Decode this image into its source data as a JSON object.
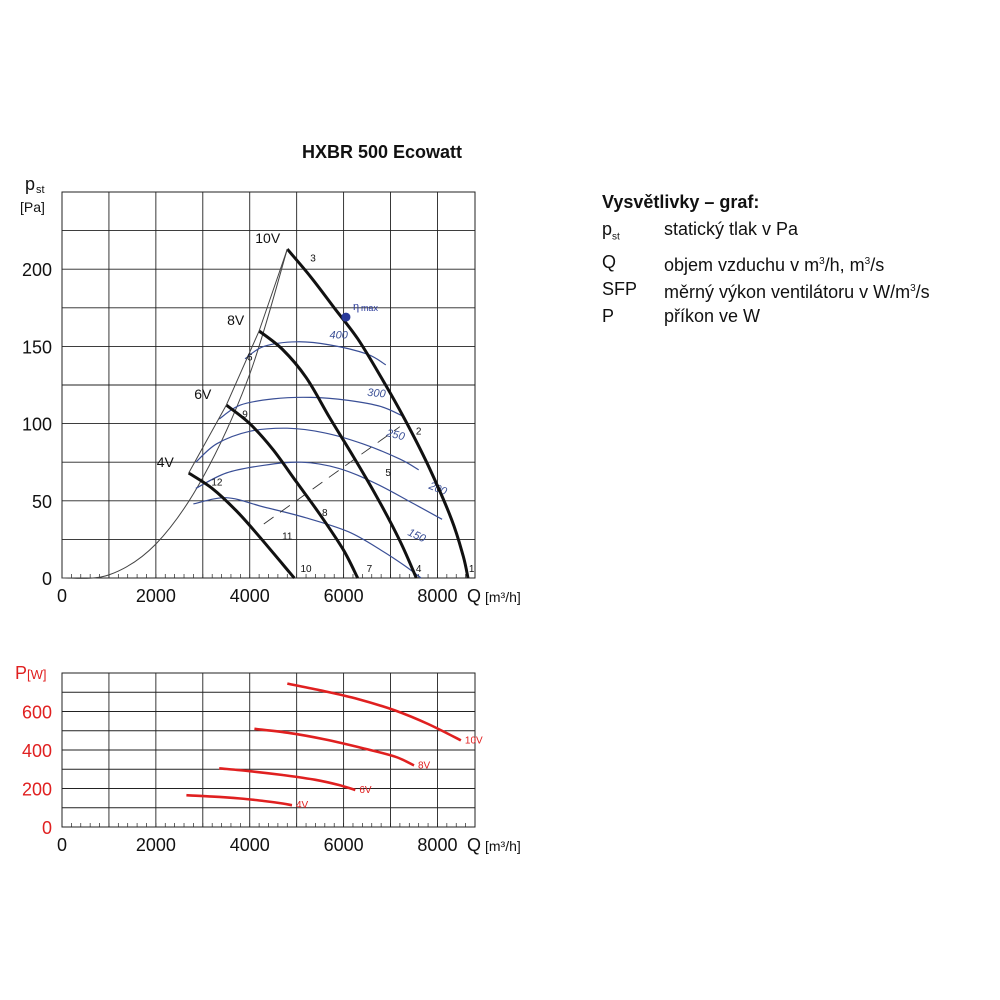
{
  "chart_data": [
    {
      "type": "line",
      "title": "HXBR 500 Ecowatt",
      "ylabel": "p",
      "ylabel_sub": "st",
      "ylabel_unit": "[Pa]",
      "xlabel": "Q",
      "xlabel_unit": "[m³/h]",
      "xlim": [
        0,
        8800
      ],
      "ylim": [
        0,
        250
      ],
      "grid": true,
      "x_ticks": [
        0,
        2000,
        4000,
        6000,
        8000
      ],
      "y_ticks": [
        0,
        50,
        100,
        150,
        200
      ],
      "series": [
        {
          "name": "10V",
          "x": [
            4800,
            5300,
            5800,
            6300,
            6800,
            7300,
            7800,
            8300,
            8550,
            8650
          ],
          "y": [
            213,
            195,
            175,
            155,
            130,
            103,
            73,
            38,
            14,
            0
          ]
        },
        {
          "name": "8V",
          "x": [
            4200,
            4700,
            5200,
            5700,
            6200,
            6700,
            7200,
            7550
          ],
          "y": [
            160,
            148,
            130,
            104,
            79,
            53,
            24,
            0
          ]
        },
        {
          "name": "6V",
          "x": [
            3500,
            4000,
            4500,
            5000,
            5500,
            6000,
            6300
          ],
          "y": [
            112,
            100,
            83,
            62,
            41,
            18,
            0
          ]
        },
        {
          "name": "4V",
          "x": [
            2700,
            3200,
            3700,
            4200,
            4700,
            4950
          ],
          "y": [
            68,
            58,
            44,
            27,
            9,
            0
          ]
        }
      ],
      "system_curve": {
        "x": [
          0,
          1000,
          2000,
          3000,
          4000,
          4800
        ],
        "y": [
          0,
          2,
          22,
          65,
          132,
          213
        ]
      },
      "sfp_curves": [
        {
          "label": "400",
          "x": [
            3900,
            4300,
            5000,
            5700,
            6500,
            6900
          ],
          "y": [
            142,
            150,
            153,
            151,
            145,
            138
          ]
        },
        {
          "label": "300",
          "x": [
            3350,
            3800,
            4500,
            5300,
            6100,
            6800,
            7250
          ],
          "y": [
            103,
            112,
            116,
            117,
            115,
            111,
            105
          ]
        },
        {
          "label": "250",
          "x": [
            2850,
            3300,
            4000,
            4800,
            5600,
            6400,
            7200,
            7600
          ],
          "y": [
            75,
            87,
            95,
            97,
            94,
            87,
            77,
            70
          ]
        },
        {
          "label": "200",
          "x": [
            2850,
            3500,
            4300,
            5100,
            5900,
            6700,
            7500,
            8100
          ],
          "y": [
            58,
            68,
            73,
            75,
            71,
            61,
            48,
            38
          ]
        },
        {
          "label": "150",
          "x": [
            2800,
            3500,
            4300,
            5200,
            6100,
            6800,
            7300,
            7650
          ],
          "y": [
            48,
            52,
            46,
            39,
            30,
            18,
            8,
            0
          ]
        }
      ],
      "eta_max": {
        "label": "η",
        "sub": "max",
        "x": 6050,
        "y": 169
      },
      "point_labels": [
        {
          "label": "1",
          "x": 8730,
          "y": 4
        },
        {
          "label": "2",
          "x": 7600,
          "y": 93
        },
        {
          "label": "3",
          "x": 5350,
          "y": 205
        },
        {
          "label": "4",
          "x": 7600,
          "y": 4
        },
        {
          "label": "5",
          "x": 6950,
          "y": 66
        },
        {
          "label": "6",
          "x": 4000,
          "y": 141
        },
        {
          "label": "7",
          "x": 6550,
          "y": 4
        },
        {
          "label": "8",
          "x": 5600,
          "y": 40
        },
        {
          "label": "9",
          "x": 3900,
          "y": 104
        },
        {
          "label": "10",
          "x": 5200,
          "y": 4
        },
        {
          "label": "11",
          "x": 4800,
          "y": 25
        },
        {
          "label": "12",
          "x": 3300,
          "y": 60
        }
      ]
    },
    {
      "type": "line",
      "ylabel": "P",
      "ylabel_unit": "[W]",
      "xlabel": "Q",
      "xlabel_unit": "[m³/h]",
      "xlim": [
        0,
        8800
      ],
      "ylim": [
        0,
        800
      ],
      "grid": true,
      "x_ticks": [
        0,
        2000,
        4000,
        6000,
        8000
      ],
      "y_ticks": [
        0,
        200,
        400,
        600
      ],
      "series": [
        {
          "name": "10V",
          "x": [
            4800,
            5500,
            6300,
            7100,
            7800,
            8500
          ],
          "y": [
            745,
            710,
            665,
            605,
            535,
            450
          ]
        },
        {
          "name": "8V",
          "x": [
            4100,
            4800,
            5600,
            6400,
            7100,
            7500
          ],
          "y": [
            510,
            490,
            455,
            410,
            365,
            320
          ]
        },
        {
          "name": "6V",
          "x": [
            3350,
            4000,
            4700,
            5400,
            5900,
            6250
          ],
          "y": [
            305,
            290,
            270,
            245,
            218,
            192
          ]
        },
        {
          "name": "4V",
          "x": [
            2650,
            3200,
            3800,
            4300,
            4700,
            4900
          ],
          "y": [
            165,
            158,
            148,
            135,
            122,
            113
          ]
        }
      ]
    }
  ],
  "legend": {
    "title": "Vysvětlivky – graf:",
    "items": [
      {
        "symbol": "p",
        "symbol_sub": "st",
        "desc": "statický tlak v Pa"
      },
      {
        "symbol": "Q",
        "desc_parts": [
          "objem vzduchu v m",
          "3",
          "/h, m",
          "3",
          "/s"
        ]
      },
      {
        "symbol": "SFP",
        "desc_parts": [
          "měrný výkon ventilátoru v W/m",
          "3",
          "/s"
        ]
      },
      {
        "symbol": "P",
        "desc": "příkon ve W"
      }
    ]
  },
  "colors": {
    "fan_curve": "#111111",
    "sfp_curve": "#3a4f96",
    "power_curve": "#e02020",
    "grid": "#222222",
    "eta_point": "#2a3a9a"
  }
}
